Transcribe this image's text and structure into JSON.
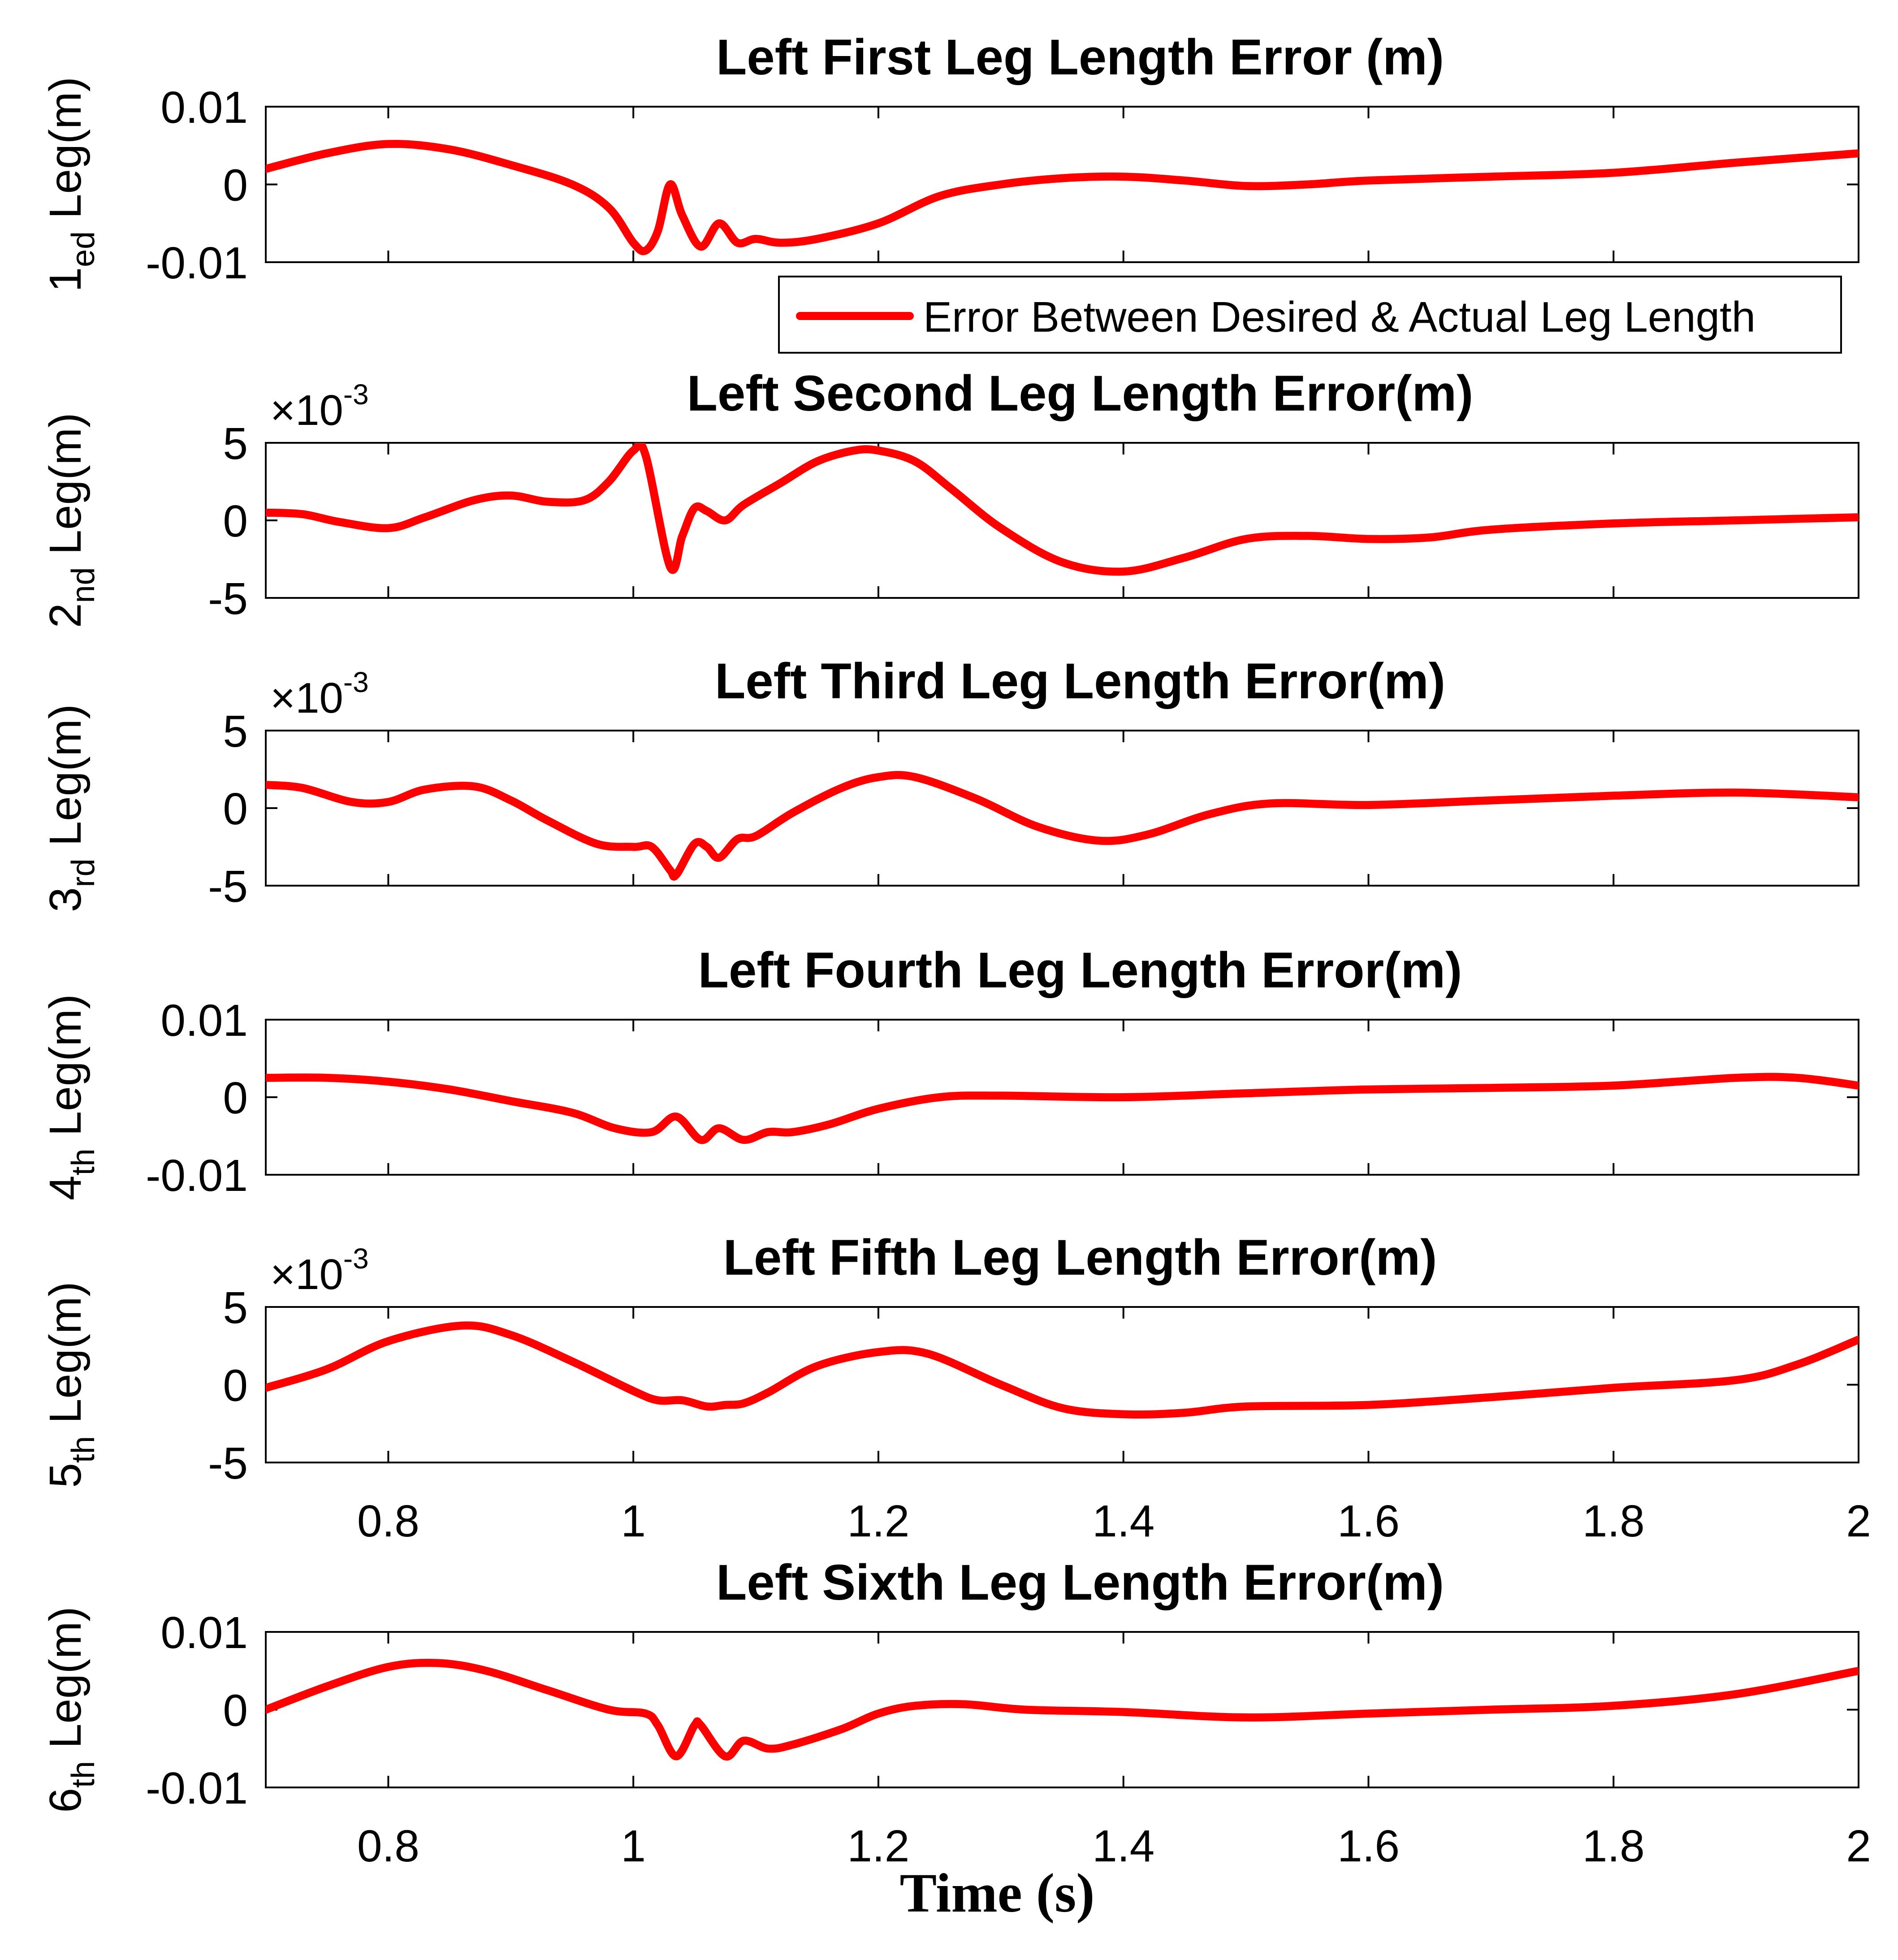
{
  "chart_data": {
    "type": "line",
    "series_color": "#ff0000",
    "legend": {
      "label": "Error Between Desired & Actual Leg Length",
      "placement": "below first plot, right"
    },
    "xlabel": "Time (s)",
    "xlim": [
      0.7,
      2
    ],
    "xticks": [
      0.8,
      1,
      1.2,
      1.4,
      1.6,
      1.8,
      2
    ],
    "xtick_labels": [
      "0.8",
      "1",
      "1.2",
      "1.4",
      "1.6",
      "1.8",
      "2"
    ],
    "subplots": [
      {
        "title": "Left First Leg Length Error (m)",
        "ylabel_main": "1",
        "ylabel_sub": "ed",
        "ylabel_tail": " Leg(m)",
        "multiplier": null,
        "ylim": [
          -0.01,
          0.01
        ],
        "yticks": [
          -0.01,
          0,
          0.01
        ],
        "ytick_labels": [
          "-0.01",
          "0",
          "0.01"
        ],
        "show_xticklabels": false,
        "x": [
          0.7,
          0.75,
          0.8,
          0.85,
          0.9,
          0.95,
          0.98,
          1.0,
          1.01,
          1.02,
          1.03,
          1.04,
          1.055,
          1.07,
          1.085,
          1.1,
          1.12,
          1.15,
          1.2,
          1.25,
          1.3,
          1.35,
          1.4,
          1.45,
          1.5,
          1.55,
          1.6,
          1.7,
          1.8,
          1.9,
          2.0
        ],
        "y": [
          0.002,
          0.004,
          0.0052,
          0.0045,
          0.0025,
          0.0,
          -0.003,
          -0.0075,
          -0.0085,
          -0.006,
          0.0,
          -0.004,
          -0.008,
          -0.005,
          -0.0075,
          -0.007,
          -0.0075,
          -0.007,
          -0.005,
          -0.0015,
          0.0,
          0.0008,
          0.001,
          0.0005,
          -0.0002,
          0.0,
          0.0005,
          0.001,
          0.0015,
          0.0028,
          0.004
        ]
      },
      {
        "title": "Left Second Leg Length Error(m)",
        "ylabel_main": "2",
        "ylabel_sub": "nd",
        "ylabel_tail": " Leg(m)",
        "multiplier": {
          "base": "×10",
          "exponent": "-3"
        },
        "ylim": [
          -5,
          5
        ],
        "yticks": [
          -5,
          0,
          5
        ],
        "ytick_labels": [
          "-5",
          "0",
          "5"
        ],
        "show_xticklabels": false,
        "x": [
          0.7,
          0.73,
          0.76,
          0.8,
          0.83,
          0.87,
          0.9,
          0.93,
          0.96,
          0.98,
          1.0,
          1.01,
          1.03,
          1.04,
          1.05,
          1.06,
          1.075,
          1.09,
          1.12,
          1.15,
          1.18,
          1.2,
          1.23,
          1.26,
          1.3,
          1.35,
          1.4,
          1.45,
          1.5,
          1.55,
          1.6,
          1.65,
          1.7,
          1.8,
          1.9,
          2.0
        ],
        "y": [
          0.5,
          0.4,
          -0.1,
          -0.5,
          0.2,
          1.3,
          1.6,
          1.2,
          1.3,
          2.5,
          4.5,
          4.2,
          -3.0,
          -1.0,
          0.8,
          0.6,
          0.0,
          1.0,
          2.4,
          3.8,
          4.5,
          4.5,
          3.8,
          2.0,
          -0.5,
          -2.7,
          -3.3,
          -2.4,
          -1.2,
          -1.0,
          -1.2,
          -1.1,
          -0.6,
          -0.2,
          0.0,
          0.2
        ]
      },
      {
        "title": "Left Third Leg Length Error(m)",
        "ylabel_main": "3",
        "ylabel_sub": "rd",
        "ylabel_tail": " Leg(m)",
        "multiplier": {
          "base": "×10",
          "exponent": "-3"
        },
        "ylim": [
          -5,
          5
        ],
        "yticks": [
          -5,
          0,
          5
        ],
        "ytick_labels": [
          "-5",
          "0",
          "5"
        ],
        "show_xticklabels": false,
        "x": [
          0.7,
          0.73,
          0.77,
          0.8,
          0.83,
          0.87,
          0.9,
          0.93,
          0.97,
          1.0,
          1.015,
          1.03,
          1.035,
          1.05,
          1.06,
          1.07,
          1.085,
          1.1,
          1.13,
          1.17,
          1.2,
          1.23,
          1.28,
          1.33,
          1.38,
          1.42,
          1.47,
          1.52,
          1.6,
          1.7,
          1.8,
          1.9,
          2.0
        ],
        "y": [
          1.5,
          1.3,
          0.4,
          0.4,
          1.2,
          1.4,
          0.5,
          -0.8,
          -2.3,
          -2.5,
          -2.5,
          -4.0,
          -4.3,
          -2.3,
          -2.5,
          -3.2,
          -2.0,
          -1.8,
          -0.3,
          1.3,
          2.0,
          2.0,
          0.6,
          -1.2,
          -2.1,
          -1.7,
          -0.4,
          0.3,
          0.2,
          0.5,
          0.8,
          1.0,
          0.7
        ]
      },
      {
        "title": "Left Fourth Leg Length Error(m)",
        "ylabel_main": "4",
        "ylabel_sub": "th",
        "ylabel_tail": " Leg(m)",
        "multiplier": null,
        "ylim": [
          -0.01,
          0.01
        ],
        "yticks": [
          -0.01,
          0,
          0.01
        ],
        "ytick_labels": [
          "-0.01",
          "0",
          "0.01"
        ],
        "show_xticklabels": false,
        "x": [
          0.7,
          0.75,
          0.8,
          0.85,
          0.9,
          0.95,
          0.985,
          1.015,
          1.035,
          1.055,
          1.07,
          1.09,
          1.11,
          1.13,
          1.16,
          1.2,
          1.25,
          1.3,
          1.4,
          1.5,
          1.6,
          1.7,
          1.8,
          1.9,
          1.95,
          2.0
        ],
        "y": [
          0.0025,
          0.0025,
          0.002,
          0.001,
          -0.0005,
          -0.002,
          -0.004,
          -0.0045,
          -0.0025,
          -0.0055,
          -0.004,
          -0.0055,
          -0.0045,
          -0.0045,
          -0.0035,
          -0.0015,
          0.0,
          0.0002,
          0.0,
          0.0005,
          0.001,
          0.0012,
          0.0015,
          0.0025,
          0.0025,
          0.0015
        ]
      },
      {
        "title": "Left Fifth Leg Length Error(m)",
        "ylabel_main": "5",
        "ylabel_sub": "th",
        "ylabel_tail": " Leg(m)",
        "multiplier": {
          "base": "×10",
          "exponent": "-3"
        },
        "ylim": [
          -5,
          5
        ],
        "yticks": [
          -5,
          0,
          5
        ],
        "ytick_labels": [
          "-5",
          "0",
          "5"
        ],
        "show_xticklabels": true,
        "x": [
          0.7,
          0.75,
          0.8,
          0.86,
          0.9,
          0.95,
          1.0,
          1.02,
          1.04,
          1.06,
          1.075,
          1.09,
          1.11,
          1.15,
          1.2,
          1.24,
          1.3,
          1.35,
          1.4,
          1.45,
          1.5,
          1.6,
          1.7,
          1.8,
          1.9,
          1.95,
          2.0
        ],
        "y": [
          -0.2,
          1.0,
          2.8,
          3.8,
          3.2,
          1.5,
          -0.4,
          -1.0,
          -1.0,
          -1.4,
          -1.3,
          -1.2,
          -0.5,
          1.2,
          2.1,
          2.0,
          0.0,
          -1.5,
          -1.9,
          -1.8,
          -1.4,
          -1.3,
          -0.8,
          -0.2,
          0.3,
          1.3,
          2.9
        ]
      },
      {
        "title": "Left Sixth Leg Length Error(m)",
        "ylabel_main": "6",
        "ylabel_sub": "th",
        "ylabel_tail": " Leg(m)",
        "multiplier": null,
        "ylim": [
          -0.01,
          0.01
        ],
        "yticks": [
          -0.01,
          0,
          0.01
        ],
        "ytick_labels": [
          "-0.01",
          "0",
          "0.01"
        ],
        "show_xticklabels": true,
        "x": [
          0.7,
          0.75,
          0.8,
          0.84,
          0.88,
          0.93,
          0.98,
          1.01,
          1.02,
          1.035,
          1.05,
          1.055,
          1.075,
          1.09,
          1.11,
          1.13,
          1.17,
          1.2,
          1.23,
          1.27,
          1.32,
          1.4,
          1.5,
          1.6,
          1.7,
          1.8,
          1.9,
          2.0
        ],
        "y": [
          0.0,
          0.003,
          0.0055,
          0.006,
          0.005,
          0.0025,
          0.0,
          -0.0005,
          -0.002,
          -0.006,
          -0.002,
          -0.002,
          -0.006,
          -0.004,
          -0.005,
          -0.0045,
          -0.0025,
          -0.0005,
          0.0005,
          0.0007,
          0.0,
          -0.0003,
          -0.001,
          -0.0005,
          0.0,
          0.0005,
          0.002,
          0.005
        ]
      }
    ]
  }
}
